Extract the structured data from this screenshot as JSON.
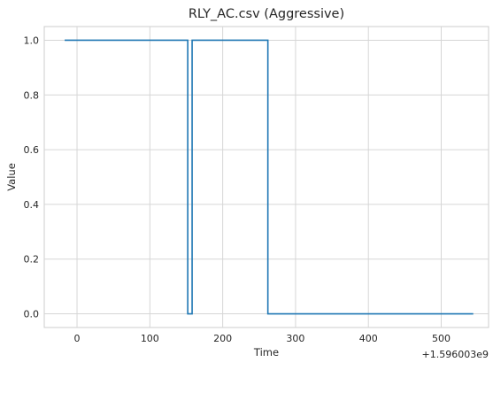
{
  "chart_data": {
    "type": "line",
    "title": "RLY_AC.csv (Aggressive)",
    "xlabel": "Time",
    "ylabel": "Value",
    "x_offset_label": "+1.596003e9",
    "xlim": [
      -45,
      565
    ],
    "ylim": [
      -0.05,
      1.05
    ],
    "xticks": [
      0,
      100,
      200,
      300,
      400,
      500
    ],
    "yticks": [
      0.0,
      0.2,
      0.4,
      0.6,
      0.8,
      1.0
    ],
    "ytick_labels": [
      "0.0",
      "0.2",
      "0.4",
      "0.6",
      "0.8",
      "1.0"
    ],
    "grid": true,
    "line_color": "#1f77b4",
    "series": [
      {
        "step": true,
        "x": [
          -17,
          152,
          158,
          262,
          544
        ],
        "values": [
          1,
          0,
          1,
          0,
          0
        ]
      }
    ]
  }
}
